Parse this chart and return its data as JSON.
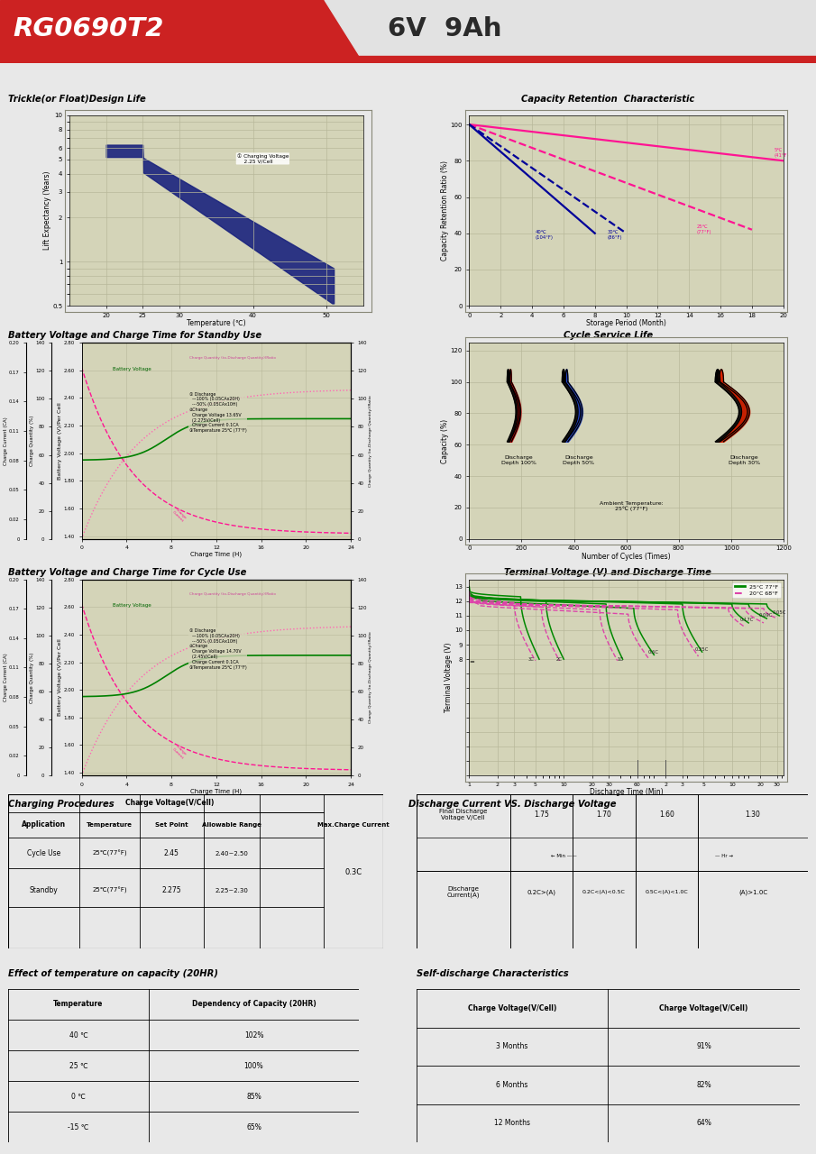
{
  "title_model": "RG0690T2",
  "title_spec": "6V  9Ah",
  "bg_color": "#e8e8e8",
  "header_red": "#cc2222",
  "grid_bg": "#d4d4b8",
  "plot_border": "#a0a080",
  "section1_title": "Trickle(or Float)Design Life",
  "section2_title": "Capacity Retention  Characteristic",
  "section3_title": "Battery Voltage and Charge Time for Standby Use",
  "section4_title": "Cycle Service Life",
  "section5_title": "Battery Voltage and Charge Time for Cycle Use",
  "section6_title": "Terminal Voltage (V) and Discharge Time",
  "section7_title": "Charging Procedures",
  "section8_title": "Discharge Current VS. Discharge Voltage",
  "section9_title": "Effect of temperature on capacity (20HR)",
  "section10_title": "Self-discharge Characteristics",
  "temp_cap_data": [
    [
      "40 ℃",
      "102%"
    ],
    [
      "25 ℃",
      "100%"
    ],
    [
      "0 ℃",
      "85%"
    ],
    [
      "-15 ℃",
      "65%"
    ]
  ],
  "self_discharge_data": [
    [
      "3 Months",
      "91%"
    ],
    [
      "6 Months",
      "82%"
    ],
    [
      "12 Months",
      "64%"
    ]
  ],
  "charging_rows": [
    [
      "Cycle Use",
      "25℃(77°F)",
      "2.45",
      "2.40~2.50"
    ],
    [
      "Standby",
      "25℃(77°F)",
      "2.275",
      "2.25~2.30"
    ]
  ],
  "discharge_voltages": [
    "1.75",
    "1.70",
    "1.60",
    "1.30"
  ],
  "discharge_currents": [
    "0.2C>(A)",
    "0.2C<(A)<0.5C",
    "0.5C<(A)<1.0C",
    "(A)>1.0C"
  ],
  "grid_line_color": "#b8b89a",
  "green_25": "#008800",
  "pink_20": "#dd44aa"
}
